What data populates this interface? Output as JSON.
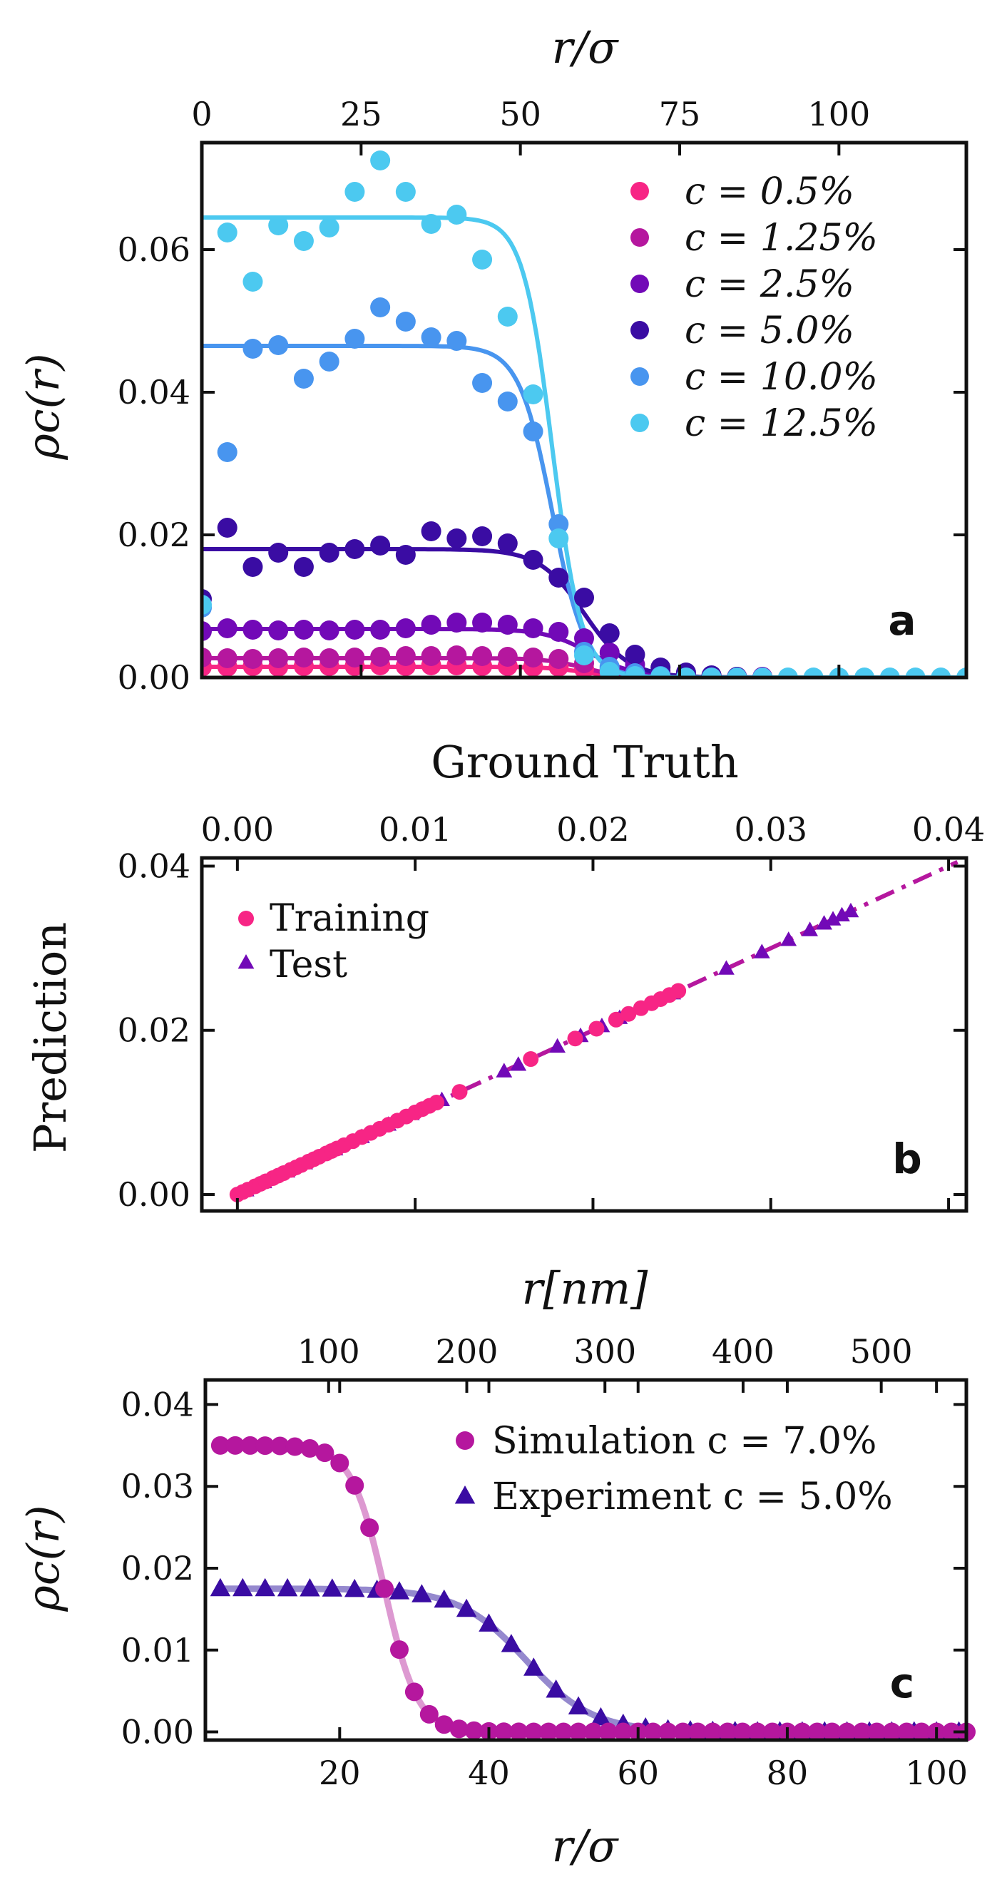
{
  "chart_data": [
    {
      "type": "scatter",
      "panel_label": "a",
      "title": "",
      "xlabel_top": "r/σ",
      "ylabel": "ρc(r)",
      "xlim": [
        0,
        120
      ],
      "ylim": [
        0,
        0.075
      ],
      "xticks": [
        0,
        25,
        50,
        75,
        100
      ],
      "xtick_labels": [
        "0",
        "25",
        "50",
        "75",
        "100"
      ],
      "yticks": [
        0,
        0.02,
        0.04,
        0.06
      ],
      "ytick_labels": [
        "0.00",
        "0.02",
        "0.04",
        "0.06"
      ],
      "legend_position": "top-right",
      "series": [
        {
          "name": "c = 0.5%",
          "color": "#f72585",
          "plateau": 0.0015,
          "mid": 60,
          "width": 3,
          "points": [
            [
              0,
              0.0015
            ],
            [
              4,
              0.0015
            ],
            [
              8,
              0.0016
            ],
            [
              12,
              0.0015
            ],
            [
              16,
              0.0016
            ],
            [
              20,
              0.0016
            ],
            [
              24,
              0.0016
            ],
            [
              28,
              0.0017
            ],
            [
              32,
              0.0016
            ],
            [
              36,
              0.0017
            ],
            [
              40,
              0.0017
            ],
            [
              44,
              0.0016
            ],
            [
              48,
              0.0016
            ],
            [
              52,
              0.0015
            ],
            [
              56,
              0.0015
            ],
            [
              60,
              0.0012
            ]
          ]
        },
        {
          "name": "c = 1.25%",
          "color": "#b5179e",
          "plateau": 0.0027,
          "mid": 60,
          "width": 3,
          "points": [
            [
              0,
              0.0028
            ],
            [
              4,
              0.0027
            ],
            [
              8,
              0.0026
            ],
            [
              12,
              0.0027
            ],
            [
              16,
              0.0028
            ],
            [
              20,
              0.0027
            ],
            [
              24,
              0.0028
            ],
            [
              28,
              0.0029
            ],
            [
              32,
              0.003
            ],
            [
              36,
              0.003
            ],
            [
              40,
              0.0031
            ],
            [
              44,
              0.003
            ],
            [
              48,
              0.0029
            ],
            [
              52,
              0.0028
            ],
            [
              56,
              0.0026
            ],
            [
              60,
              0.002
            ],
            [
              64,
              0.0012
            ],
            [
              68,
              0.0006
            ]
          ]
        },
        {
          "name": "c = 2.5%",
          "color": "#7209b7",
          "plateau": 0.0068,
          "mid": 61,
          "width": 3.5,
          "points": [
            [
              0,
              0.0065
            ],
            [
              4,
              0.0069
            ],
            [
              8,
              0.0067
            ],
            [
              12,
              0.0066
            ],
            [
              16,
              0.0067
            ],
            [
              20,
              0.0066
            ],
            [
              24,
              0.0067
            ],
            [
              28,
              0.0067
            ],
            [
              32,
              0.0069
            ],
            [
              36,
              0.0074
            ],
            [
              40,
              0.0077
            ],
            [
              44,
              0.0077
            ],
            [
              48,
              0.0074
            ],
            [
              52,
              0.0069
            ],
            [
              56,
              0.0064
            ],
            [
              60,
              0.0055
            ],
            [
              64,
              0.0035
            ],
            [
              68,
              0.0018
            ],
            [
              72,
              0.0009
            ],
            [
              76,
              0.0004
            ],
            [
              80,
              0.0002
            ],
            [
              84,
              0.0001
            ],
            [
              88,
              0.0001
            ]
          ]
        },
        {
          "name": "c = 5.0%",
          "color": "#3a0ca3",
          "plateau": 0.018,
          "mid": 60,
          "width": 3.5,
          "points": [
            [
              0,
              0.011
            ],
            [
              4,
              0.021
            ],
            [
              8,
              0.0155
            ],
            [
              12,
              0.0175
            ],
            [
              16,
              0.0155
            ],
            [
              20,
              0.0175
            ],
            [
              24,
              0.018
            ],
            [
              28,
              0.0185
            ],
            [
              32,
              0.0172
            ],
            [
              36,
              0.0205
            ],
            [
              40,
              0.0195
            ],
            [
              44,
              0.0198
            ],
            [
              48,
              0.0188
            ],
            [
              52,
              0.0165
            ],
            [
              56,
              0.014
            ],
            [
              60,
              0.0112
            ],
            [
              64,
              0.0062
            ],
            [
              68,
              0.0032
            ],
            [
              72,
              0.0014
            ],
            [
              76,
              0.0007
            ],
            [
              80,
              0.0003
            ],
            [
              84,
              0.0001
            ]
          ]
        },
        {
          "name": "c = 10.0%",
          "color": "#4895ef",
          "plateau": 0.0465,
          "mid": 55,
          "width": 2.6,
          "points": [
            [
              0,
              0.0098
            ],
            [
              4,
              0.0316
            ],
            [
              8,
              0.0461
            ],
            [
              12,
              0.0466
            ],
            [
              16,
              0.0419
            ],
            [
              20,
              0.0443
            ],
            [
              24,
              0.0475
            ],
            [
              28,
              0.0519
            ],
            [
              32,
              0.0499
            ],
            [
              36,
              0.0477
            ],
            [
              40,
              0.0472
            ],
            [
              44,
              0.0413
            ],
            [
              48,
              0.0387
            ],
            [
              52,
              0.0345
            ],
            [
              56,
              0.0215
            ],
            [
              60,
              0.0036
            ],
            [
              64,
              0.0015
            ],
            [
              68,
              0.0006
            ],
            [
              72,
              0.0002
            ]
          ]
        },
        {
          "name": "c = 12.5%",
          "color": "#4cc9f0",
          "plateau": 0.0645,
          "mid": 55,
          "width": 2.3,
          "points": [
            [
              0,
              0.0102
            ],
            [
              4,
              0.0624
            ],
            [
              8,
              0.0555
            ],
            [
              12,
              0.0634
            ],
            [
              16,
              0.0612
            ],
            [
              20,
              0.0631
            ],
            [
              24,
              0.0681
            ],
            [
              28,
              0.0725
            ],
            [
              32,
              0.0681
            ],
            [
              36,
              0.0636
            ],
            [
              40,
              0.0649
            ],
            [
              44,
              0.0586
            ],
            [
              48,
              0.0506
            ],
            [
              52,
              0.0397
            ],
            [
              56,
              0.0195
            ],
            [
              60,
              0.0031
            ],
            [
              64,
              0.0008
            ],
            [
              68,
              0.0002
            ],
            [
              72,
              0.0001
            ],
            [
              76,
              0.0
            ],
            [
              80,
              0.0
            ],
            [
              84,
              0.0
            ],
            [
              88,
              0.0
            ],
            [
              92,
              0.0
            ],
            [
              96,
              0.0
            ],
            [
              100,
              0.0
            ],
            [
              104,
              0.0
            ],
            [
              108,
              0.0
            ],
            [
              112,
              0.0
            ],
            [
              116,
              0.0
            ],
            [
              120,
              0.0
            ]
          ]
        }
      ]
    },
    {
      "type": "scatter",
      "panel_label": "b",
      "title": "",
      "xlabel_top": "Ground Truth",
      "ylabel": "Prediction",
      "xlim": [
        -0.002,
        0.041
      ],
      "ylim": [
        -0.002,
        0.041
      ],
      "xticks": [
        0,
        0.01,
        0.02,
        0.03,
        0.04
      ],
      "xtick_labels": [
        "0.00",
        "0.01",
        "0.02",
        "0.03",
        "0.04"
      ],
      "yticks": [
        0,
        0.02,
        0.04
      ],
      "ytick_labels": [
        "0.00",
        "0.02",
        "0.04"
      ],
      "legend_position": "top-left",
      "fit_line": {
        "slope": 1,
        "intercept": 0,
        "color": "#b5179e"
      },
      "series": [
        {
          "name": "Training",
          "color": "#f72585",
          "marker": "circle",
          "points": [
            [
              0.0,
              0.0
            ],
            [
              0.0003,
              0.0003
            ],
            [
              0.0006,
              0.0006
            ],
            [
              0.001,
              0.001
            ],
            [
              0.0013,
              0.0013
            ],
            [
              0.0016,
              0.0016
            ],
            [
              0.002,
              0.002
            ],
            [
              0.0023,
              0.0023
            ],
            [
              0.0026,
              0.0026
            ],
            [
              0.003,
              0.003
            ],
            [
              0.0033,
              0.0033
            ],
            [
              0.0036,
              0.0036
            ],
            [
              0.004,
              0.004
            ],
            [
              0.0043,
              0.0043
            ],
            [
              0.0046,
              0.0046
            ],
            [
              0.005,
              0.005
            ],
            [
              0.0053,
              0.0053
            ],
            [
              0.0056,
              0.0056
            ],
            [
              0.006,
              0.006
            ],
            [
              0.0065,
              0.0065
            ],
            [
              0.007,
              0.007
            ],
            [
              0.0075,
              0.0075
            ],
            [
              0.008,
              0.008
            ],
            [
              0.0085,
              0.0085
            ],
            [
              0.009,
              0.009
            ],
            [
              0.0095,
              0.0095
            ],
            [
              0.01,
              0.01
            ],
            [
              0.0104,
              0.0104
            ],
            [
              0.0108,
              0.0108
            ],
            [
              0.0112,
              0.0112
            ],
            [
              0.0125,
              0.0125
            ],
            [
              0.0165,
              0.0165
            ],
            [
              0.019,
              0.019
            ],
            [
              0.0202,
              0.0202
            ],
            [
              0.0213,
              0.0213
            ],
            [
              0.022,
              0.022
            ],
            [
              0.0227,
              0.0227
            ],
            [
              0.0233,
              0.0233
            ],
            [
              0.0238,
              0.0238
            ],
            [
              0.0243,
              0.0243
            ],
            [
              0.0248,
              0.0248
            ]
          ]
        },
        {
          "name": "Test",
          "color": "#7209b7",
          "marker": "triangle",
          "points": [
            [
              0.0005,
              0.0005
            ],
            [
              0.0015,
              0.0015
            ],
            [
              0.0028,
              0.0028
            ],
            [
              0.0038,
              0.0038
            ],
            [
              0.0055,
              0.0055
            ],
            [
              0.007,
              0.007
            ],
            [
              0.0085,
              0.0085
            ],
            [
              0.0098,
              0.0098
            ],
            [
              0.0115,
              0.0115
            ],
            [
              0.015,
              0.015
            ],
            [
              0.0158,
              0.0158
            ],
            [
              0.018,
              0.018
            ],
            [
              0.0193,
              0.0193
            ],
            [
              0.0205,
              0.0205
            ],
            [
              0.0215,
              0.0215
            ],
            [
              0.0245,
              0.0245
            ],
            [
              0.0275,
              0.0275
            ],
            [
              0.0295,
              0.0295
            ],
            [
              0.031,
              0.031
            ],
            [
              0.0322,
              0.0322
            ],
            [
              0.033,
              0.033
            ],
            [
              0.0335,
              0.0335
            ],
            [
              0.034,
              0.034
            ],
            [
              0.0345,
              0.0345
            ]
          ]
        }
      ]
    },
    {
      "type": "line",
      "panel_label": "c",
      "title": "",
      "xlabel": "r/σ",
      "xlabel_top": "r[nm]",
      "ylabel": "ρc(r)",
      "xlim": [
        2,
        104
      ],
      "ylim": [
        -0.001,
        0.043
      ],
      "xticks": [
        20,
        40,
        60,
        80,
        100
      ],
      "xtick_labels": [
        "20",
        "40",
        "60",
        "80",
        "100"
      ],
      "top_ticks_nm": [
        100,
        200,
        300,
        400,
        500
      ],
      "top_tick_labels": [
        "100",
        "200",
        "300",
        "400",
        "500"
      ],
      "nm_per_sigma": 5.4,
      "yticks": [
        0,
        0.01,
        0.02,
        0.03,
        0.04
      ],
      "ytick_labels": [
        "0.00",
        "0.01",
        "0.02",
        "0.03",
        "0.04"
      ],
      "legend_position": "top-right",
      "series": [
        {
          "name": "Simulation c = 7.0%",
          "color": "#b5179e",
          "line_color": "#d47fc6",
          "marker": "circle",
          "plateau": 0.035,
          "mid": 26,
          "width": 2.2,
          "x_start": 4,
          "x_step": 2
        },
        {
          "name": "Experiment c = 5.0%",
          "color": "#3a0ca3",
          "line_color": "#7a6cc2",
          "marker": "triangle",
          "plateau": 0.0175,
          "mid": 45,
          "width": 4.5,
          "x_start": 4,
          "x_step": 3
        }
      ]
    }
  ]
}
